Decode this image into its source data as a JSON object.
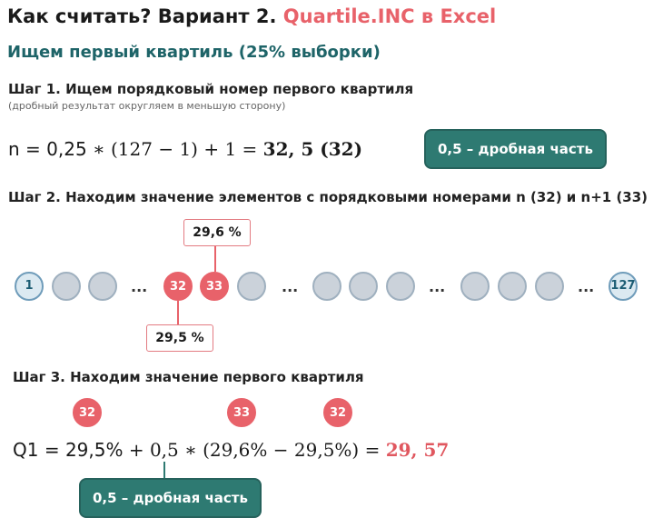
{
  "title": {
    "main": "Как считать? Вариант 2.",
    "accent": "Quartile.INC в Excel"
  },
  "subtitle": "Ищем первый квартиль (25% выборки)",
  "step1": {
    "heading": "Шаг 1. Ищем порядковый номер первого квартиля",
    "note": "(дробный результат округляем в меньшую сторону)",
    "formula_prefix": "n = 0,25 ",
    "formula_body": "∗ (127  − 1) + 1 = ",
    "formula_result": "32, 5 (32)",
    "badge": "0,5 – дробная часть"
  },
  "step2": {
    "heading": "Шаг 2. Находим значение элементов с порядковыми номерами n (32) и n+1 (33)",
    "first_label": "1",
    "last_label": "127",
    "n_label": "32",
    "n1_label": "33",
    "ellipsis": "...",
    "callout_top": "29,6 %",
    "callout_bottom": "29,5 %"
  },
  "step3": {
    "heading": "Шаг 3. Находим значение первого квартиля",
    "marker_a": "32",
    "marker_b": "33",
    "marker_c": "32",
    "formula_prefix": "Q1 = 29,5%",
    "formula_body": " + 0,5  ∗ (29,6%  − 29,5%) = ",
    "formula_result": "29, 57",
    "badge": "0,5 – дробная часть"
  },
  "colors": {
    "accent": "#e8626a",
    "teal": "#2e7a72",
    "subtitle": "#1e6468"
  }
}
